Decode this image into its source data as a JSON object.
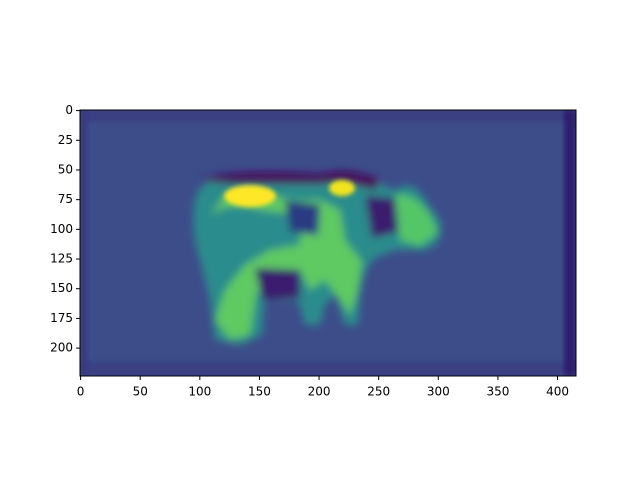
{
  "chart_data": {
    "type": "image",
    "xlim": [
      -0.5,
      415.5
    ],
    "xticks": [
      0,
      50,
      100,
      150,
      200,
      250,
      300,
      350,
      400
    ],
    "ylim": [
      223.5,
      -0.5
    ],
    "yticks": [
      0,
      25,
      50,
      75,
      100,
      125,
      150,
      175,
      200
    ]
  }
}
